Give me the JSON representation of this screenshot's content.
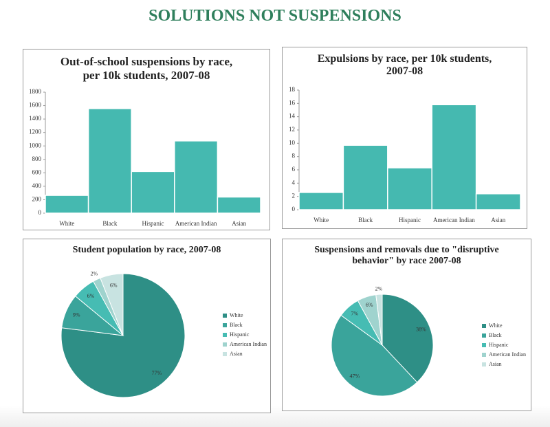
{
  "title": "SOLUTIONS NOT SUSPENSIONS",
  "chart_data": [
    {
      "type": "bar",
      "title": "Out-of-school suspensions by race, per 10k students, 2007-08",
      "categories": [
        "White",
        "Black",
        "Hispanic",
        "American Indian",
        "Asian"
      ],
      "values": [
        265,
        1555,
        620,
        1075,
        240
      ],
      "color": "#45b9b0",
      "ylim": [
        0,
        1800
      ],
      "yticks": [
        0,
        200,
        400,
        600,
        800,
        1000,
        1200,
        1400,
        1600,
        1800
      ]
    },
    {
      "type": "bar",
      "title": "Expulsions by race, per 10k students, 2007-08",
      "categories": [
        "White",
        "Black",
        "Hispanic",
        "American Indian",
        "Asian"
      ],
      "values": [
        2.6,
        9.7,
        6.3,
        15.8,
        2.4
      ],
      "color": "#45b9b0",
      "ylim": [
        0,
        18
      ],
      "yticks": [
        0,
        2,
        4,
        6,
        8,
        10,
        12,
        14,
        16,
        18
      ]
    },
    {
      "type": "pie",
      "title": "Student population by race, 2007-08",
      "categories": [
        "White",
        "Black",
        "Hispanic",
        "American Indian",
        "Asian"
      ],
      "values": [
        77,
        9,
        6,
        2,
        6
      ],
      "value_labels": [
        "77%",
        "9%",
        "6%",
        "2%",
        "6%"
      ],
      "colors": [
        "#2e8f86",
        "#3aa49b",
        "#46bcb3",
        "#9fd3ce",
        "#c8e3e1"
      ]
    },
    {
      "type": "pie",
      "title": "Suspensions and removals due to \"disruptive behavior\" by race 2007-08",
      "categories": [
        "White",
        "Black",
        "Hispanic",
        "American Indian",
        "Asian"
      ],
      "values": [
        38,
        47,
        7,
        6,
        2
      ],
      "value_labels": [
        "38%",
        "47%",
        "7%",
        "6%",
        "2%"
      ],
      "colors": [
        "#2e8f86",
        "#3aa49b",
        "#46bcb3",
        "#9fd3ce",
        "#c8e3e1"
      ]
    }
  ]
}
